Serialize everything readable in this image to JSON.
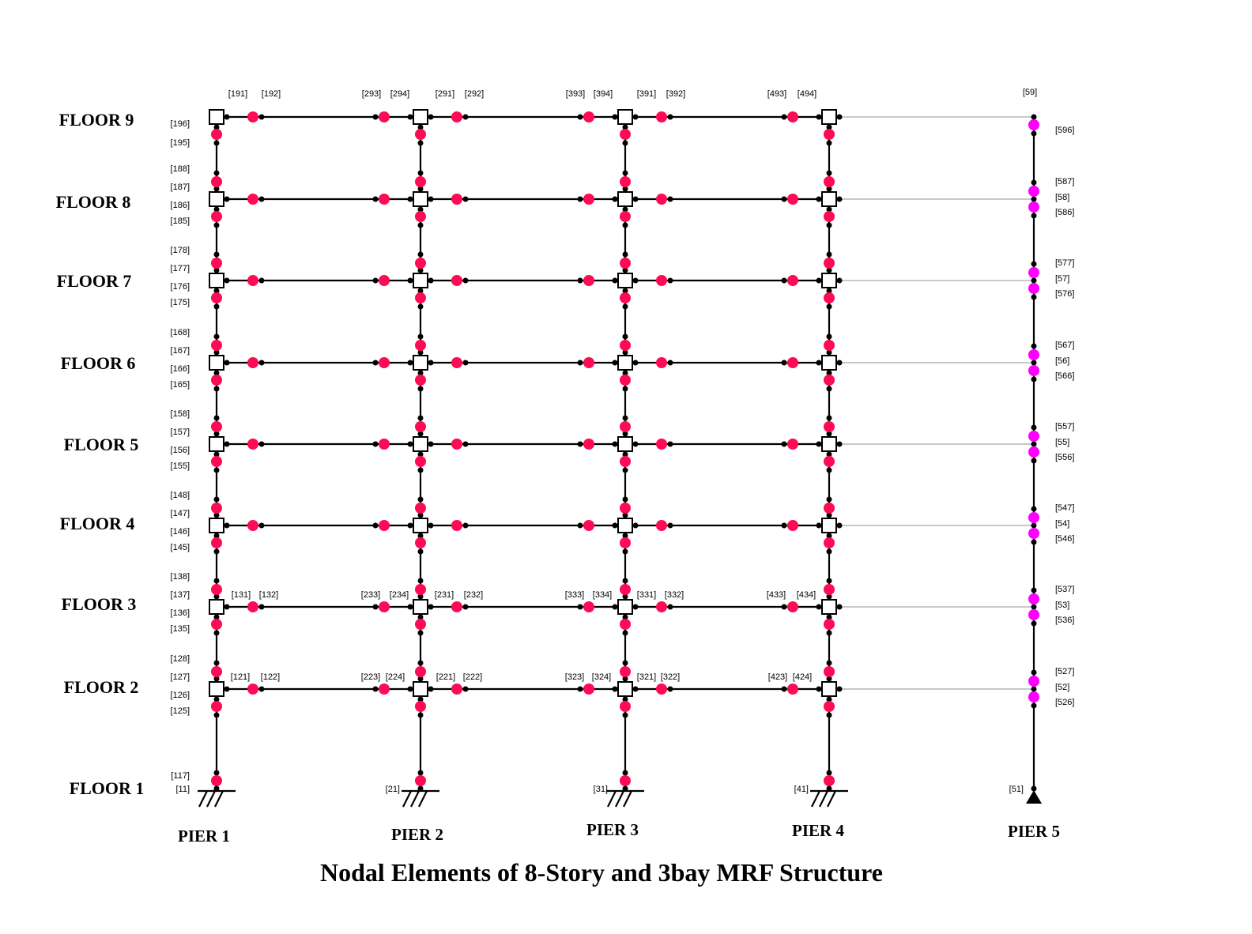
{
  "title": "Nodal Elements of 8-Story and 3bay MRF Structure",
  "colors": {
    "hinge": "#ff0a54",
    "leaning_hinge": "#ff00ff",
    "line": "#000000",
    "link": "#c8c8c8"
  },
  "floors": [
    {
      "floor": 9,
      "label": "FLOOR 9"
    },
    {
      "floor": 8,
      "label": "FLOOR 8"
    },
    {
      "floor": 7,
      "label": "FLOOR 7"
    },
    {
      "floor": 6,
      "label": "FLOOR 6"
    },
    {
      "floor": 5,
      "label": "FLOOR 5"
    },
    {
      "floor": 4,
      "label": "FLOOR 4"
    },
    {
      "floor": 3,
      "label": "FLOOR 3"
    },
    {
      "floor": 2,
      "label": "FLOOR 2"
    },
    {
      "floor": 1,
      "label": "FLOOR 1"
    }
  ],
  "piers": [
    {
      "pier": 1,
      "label": "PIER 1"
    },
    {
      "pier": 2,
      "label": "PIER 2"
    },
    {
      "pier": 3,
      "label": "PIER 3"
    },
    {
      "pier": 4,
      "label": "PIER 4"
    },
    {
      "pier": 5,
      "label": "PIER 5"
    }
  ],
  "node_labels": {
    "pier1": {
      "9": [
        "[196]",
        "[195]"
      ],
      "8": [
        "[188]",
        "[187]",
        "[186]",
        "[185]"
      ],
      "7": [
        "[178]",
        "[177]",
        "[176]",
        "[175]"
      ],
      "6": [
        "[168]",
        "[167]",
        "[166]",
        "[165]"
      ],
      "5": [
        "[158]",
        "[157]",
        "[156]",
        "[155]"
      ],
      "4": [
        "[148]",
        "[147]",
        "[146]",
        "[145]"
      ],
      "3": [
        "[138]",
        "[137]",
        "[136]",
        "[135]"
      ],
      "2": [
        "[128]",
        "[127]",
        "[126]",
        "[125]"
      ],
      "1": [
        "[117]",
        "[11]"
      ]
    },
    "base": {
      "pier2": "[21]",
      "pier3": "[31]",
      "pier4": "[41]",
      "pier5": "[51]"
    },
    "pier5": {
      "9": [
        "[59]",
        "[596]"
      ],
      "8": [
        "[587]",
        "[58]",
        "[586]"
      ],
      "7": [
        "[577]",
        "[57]",
        "[576]"
      ],
      "6": [
        "[567]",
        "[56]",
        "[566]"
      ],
      "5": [
        "[557]",
        "[55]",
        "[556]"
      ],
      "4": [
        "[547]",
        "[54]",
        "[546]"
      ],
      "3": [
        "[537]",
        "[53]",
        "[536]"
      ],
      "2": [
        "[527]",
        "[52]",
        "[526]"
      ]
    },
    "beams": {
      "9": [
        "[191]",
        "[192]",
        "[293]",
        "[294]",
        "[291]",
        "[292]",
        "[393]",
        "[394]",
        "[391]",
        "[392]",
        "[493]",
        "[494]"
      ],
      "3": [
        "[131]",
        "[132]",
        "[233]",
        "[234]",
        "[231]",
        "[232]",
        "[333]",
        "[334]",
        "[331]",
        "[332]",
        "[433]",
        "[434]"
      ],
      "2": [
        "[121]",
        "[122]",
        "[223]",
        "[224]",
        "[221]",
        "[222]",
        "[323]",
        "[324]",
        "[321]",
        "[322]",
        "[423]",
        "[424]"
      ]
    }
  }
}
